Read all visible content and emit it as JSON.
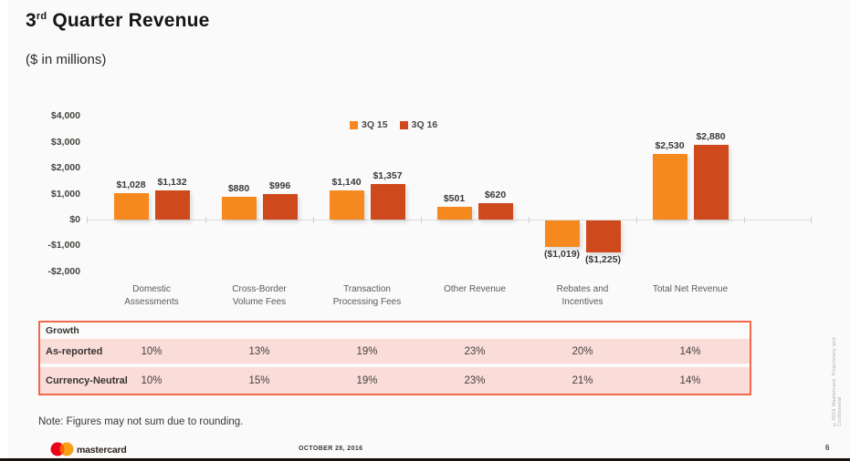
{
  "header": {
    "title_prefix": "3",
    "title_sup": "rd",
    "title_rest": " Quarter Revenue",
    "subtitle": "($ in millions)"
  },
  "chart_data": {
    "type": "bar",
    "title": "3rd Quarter Revenue",
    "subtitle": "($ in millions)",
    "categories": [
      "Domestic\nAssessments",
      "Cross-Border\nVolume Fees",
      "Transaction\nProcessing Fees",
      "Other Revenue",
      "Rebates and\nIncentives",
      "Total Net Revenue"
    ],
    "series": [
      {
        "name": "3Q 15",
        "color": "#F6891E",
        "values": [
          1028,
          880,
          1140,
          501,
          -1019,
          2530
        ],
        "labels": [
          "$1,028",
          "$880",
          "$1,140",
          "$501",
          "($1,019)",
          "$2,530"
        ]
      },
      {
        "name": "3Q 16",
        "color": "#CE4A1C",
        "values": [
          1132,
          996,
          1357,
          620,
          -1225,
          2880
        ],
        "labels": [
          "$1,132",
          "$996",
          "$1,357",
          "$620",
          "($1,225)",
          "$2,880"
        ]
      }
    ],
    "y_ticks": [
      {
        "label": "$4,000",
        "value": 4000
      },
      {
        "label": "$3,000",
        "value": 3000
      },
      {
        "label": "$2,000",
        "value": 2000
      },
      {
        "label": "$1,000",
        "value": 1000
      },
      {
        "label": "$0",
        "value": 0
      },
      {
        "label": "-$1,000",
        "value": -1000
      },
      {
        "label": "-$2,000",
        "value": -2000
      }
    ],
    "ylim": [
      -2000,
      4000
    ],
    "legend_position": "top-center",
    "grid": false
  },
  "growth_table": {
    "header": "Growth",
    "rows": [
      {
        "label": "As-reported",
        "values": [
          "10%",
          "13%",
          "19%",
          "23%",
          "20%",
          "14%"
        ]
      },
      {
        "label": "Currency-Neutral",
        "values": [
          "10%",
          "15%",
          "19%",
          "23%",
          "21%",
          "14%"
        ]
      }
    ]
  },
  "note": "Note: Figures may not sum due to rounding.",
  "footer": {
    "brand": "mastercard",
    "date": "OCTOBER 28, 2016",
    "page": "6"
  },
  "side_text": "©2016 Mastercard. Proprietary and Confidential",
  "colors": {
    "series_3q15": "#F6891E",
    "series_3q16": "#CE4A1C",
    "table_border": "#F3684A",
    "table_row_bg": "#FADCD9",
    "logo_red": "#EB001B",
    "logo_orange": "#F79E1B",
    "logo_overlap": "#FF5F00"
  }
}
